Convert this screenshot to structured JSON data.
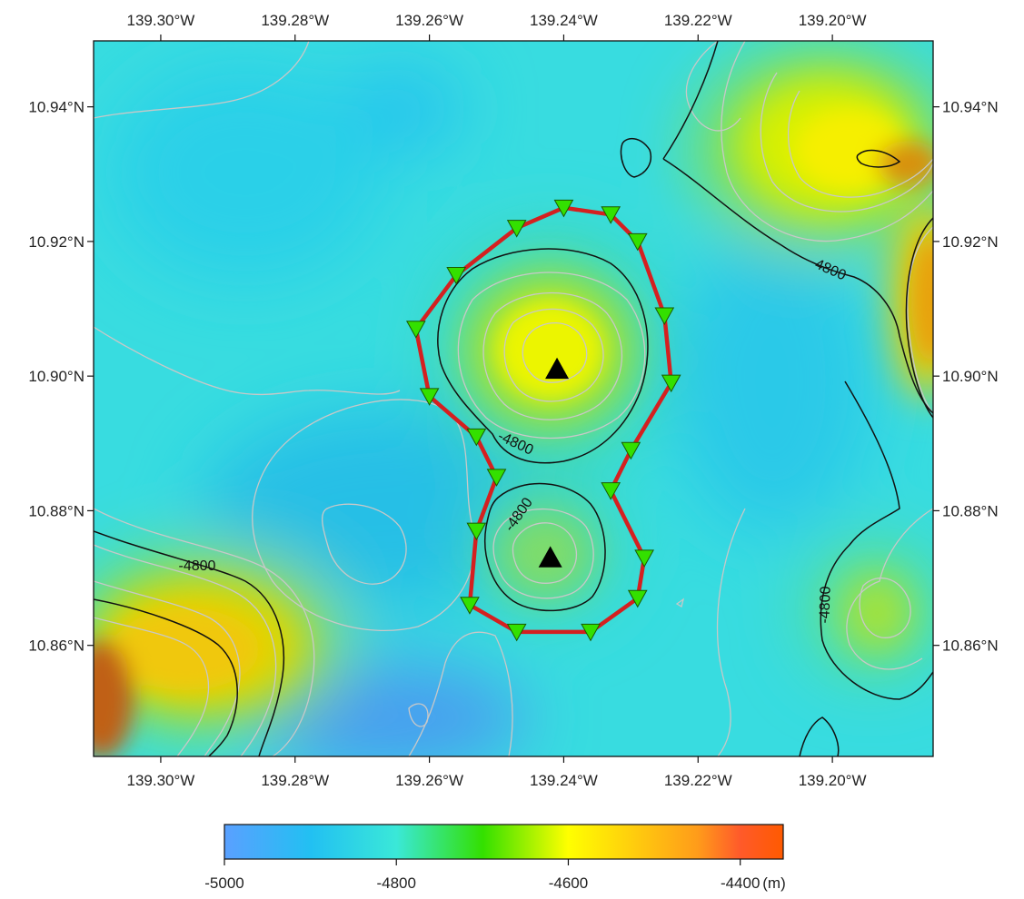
{
  "map": {
    "lon_ticks": [
      "139.30°W",
      "139.28°W",
      "139.26°W",
      "139.24°W",
      "139.22°W",
      "139.20°W"
    ],
    "lat_ticks": [
      "10.94°N",
      "10.92°N",
      "10.90°N",
      "10.88°N",
      "10.86°N"
    ],
    "contour_labels": [
      "-4800",
      "-4800",
      "-4800",
      "-4800",
      "-4800"
    ],
    "colors": {
      "route": "#d42020",
      "station_fill": "#33e000",
      "peak_marker": "#000000",
      "major_contour": "#111111",
      "minor_contour": "#c8c8c8"
    },
    "markers": {
      "peaks": [
        {
          "lon": -139.241,
          "lat": 10.901
        },
        {
          "lon": -139.242,
          "lat": 10.873
        }
      ],
      "stations": [
        {
          "lon": -139.24,
          "lat": 10.925
        },
        {
          "lon": -139.233,
          "lat": 10.924
        },
        {
          "lon": -139.229,
          "lat": 10.92
        },
        {
          "lon": -139.225,
          "lat": 10.909
        },
        {
          "lon": -139.224,
          "lat": 10.899
        },
        {
          "lon": -139.23,
          "lat": 10.889
        },
        {
          "lon": -139.233,
          "lat": 10.883
        },
        {
          "lon": -139.228,
          "lat": 10.873
        },
        {
          "lon": -139.229,
          "lat": 10.867
        },
        {
          "lon": -139.236,
          "lat": 10.862
        },
        {
          "lon": -139.247,
          "lat": 10.862
        },
        {
          "lon": -139.254,
          "lat": 10.866
        },
        {
          "lon": -139.253,
          "lat": 10.877
        },
        {
          "lon": -139.25,
          "lat": 10.885
        },
        {
          "lon": -139.253,
          "lat": 10.891
        },
        {
          "lon": -139.26,
          "lat": 10.897
        },
        {
          "lon": -139.262,
          "lat": 10.907
        },
        {
          "lon": -139.256,
          "lat": 10.915
        },
        {
          "lon": -139.247,
          "lat": 10.922
        }
      ]
    }
  },
  "colorbar": {
    "min": -5000,
    "max": -4350,
    "ticks": [
      "-5000",
      "-4800",
      "-4600",
      "-4400"
    ],
    "unit": "(m)",
    "stops": [
      {
        "value": -5000,
        "color": "#5aa0ff"
      },
      {
        "value": -4900,
        "color": "#22c0f2"
      },
      {
        "value": -4800,
        "color": "#3ae8d8"
      },
      {
        "value": -4700,
        "color": "#33e000"
      },
      {
        "value": -4600,
        "color": "#ffff00"
      },
      {
        "value": -4450,
        "color": "#ff9c1a"
      },
      {
        "value": -4400,
        "color": "#ff5a2a"
      },
      {
        "value": -4350,
        "color": "#ff5a00"
      }
    ]
  }
}
